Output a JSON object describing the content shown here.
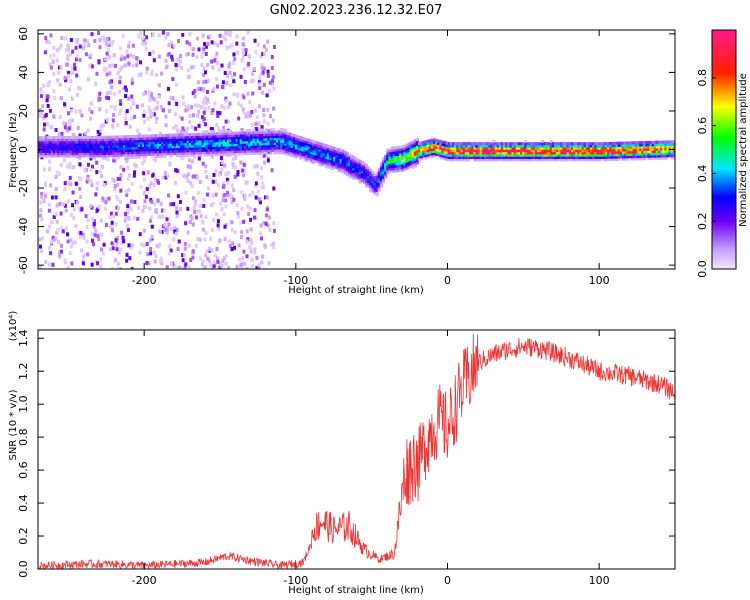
{
  "title": "GN02.2023.236.12.32.E07",
  "chart_data": [
    {
      "type": "heatmap",
      "title": "GN02.2023.236.12.32.E07",
      "xlabel": "Height of straight line (km)",
      "ylabel": "Frequency (Hz)",
      "xlim": [
        -270,
        150
      ],
      "ylim": [
        -62,
        62
      ],
      "x_ticks": [
        -200,
        -100,
        0,
        100
      ],
      "y_ticks": [
        -60,
        -40,
        -20,
        0,
        20,
        40,
        60
      ],
      "colorbar": {
        "label": "Normalized spectral amplitude",
        "range": [
          0,
          1
        ],
        "ticks": [
          "0.0",
          "0.2",
          "0.4",
          "0.6",
          "0.8"
        ],
        "colors": [
          "#ffffff",
          "#d9b8ff",
          "#8a2be2",
          "#0000ff",
          "#00ffff",
          "#00ff00",
          "#ffff00",
          "#ff0000",
          "#ff0080"
        ]
      },
      "ridge": {
        "x": [
          -270,
          -230,
          -190,
          -150,
          -110,
          -90,
          -70,
          -55,
          -48,
          -40,
          -30,
          -20,
          -10,
          0,
          50,
          100,
          150
        ],
        "y": [
          2,
          2,
          3,
          4,
          5,
          0,
          -5,
          -12,
          -18,
          -5,
          -4,
          0,
          2,
          0,
          0,
          0,
          1
        ],
        "amplitude": [
          0.25,
          0.3,
          0.35,
          0.4,
          0.4,
          0.35,
          0.35,
          0.3,
          0.3,
          0.45,
          0.6,
          0.75,
          0.85,
          0.9,
          0.95,
          0.9,
          0.8
        ]
      },
      "noise_region_x": [
        -270,
        -115
      ]
    },
    {
      "type": "line",
      "xlabel": "Height of straight line (km)",
      "ylabel": "SNR (10 * v/v)",
      "y_multiplier": "(x10⁴)",
      "xlim": [
        -270,
        150
      ],
      "ylim": [
        0,
        1.45
      ],
      "x_ticks": [
        -200,
        -100,
        0,
        100
      ],
      "y_ticks": [
        "0.0",
        "0.2",
        "0.4",
        "0.6",
        "0.8",
        "1.0",
        "1.2",
        "1.4"
      ],
      "series": [
        {
          "color": "#ee3333",
          "x": [
            -270,
            -240,
            -220,
            -200,
            -160,
            -145,
            -130,
            -110,
            -95,
            -88,
            -83,
            -75,
            -65,
            -55,
            -45,
            -35,
            -28,
            -22,
            -15,
            -10,
            -5,
            0,
            10,
            20,
            30,
            40,
            50,
            60,
            80,
            100,
            120,
            140,
            150
          ],
          "y": [
            0.02,
            0.03,
            0.03,
            0.02,
            0.04,
            0.08,
            0.05,
            0.02,
            0.04,
            0.2,
            0.25,
            0.2,
            0.22,
            0.1,
            0.05,
            0.08,
            0.5,
            0.55,
            0.75,
            0.85,
            0.9,
            0.85,
            1.1,
            1.25,
            1.3,
            1.33,
            1.35,
            1.34,
            1.28,
            1.2,
            1.17,
            1.12,
            1.07
          ]
        }
      ]
    }
  ]
}
